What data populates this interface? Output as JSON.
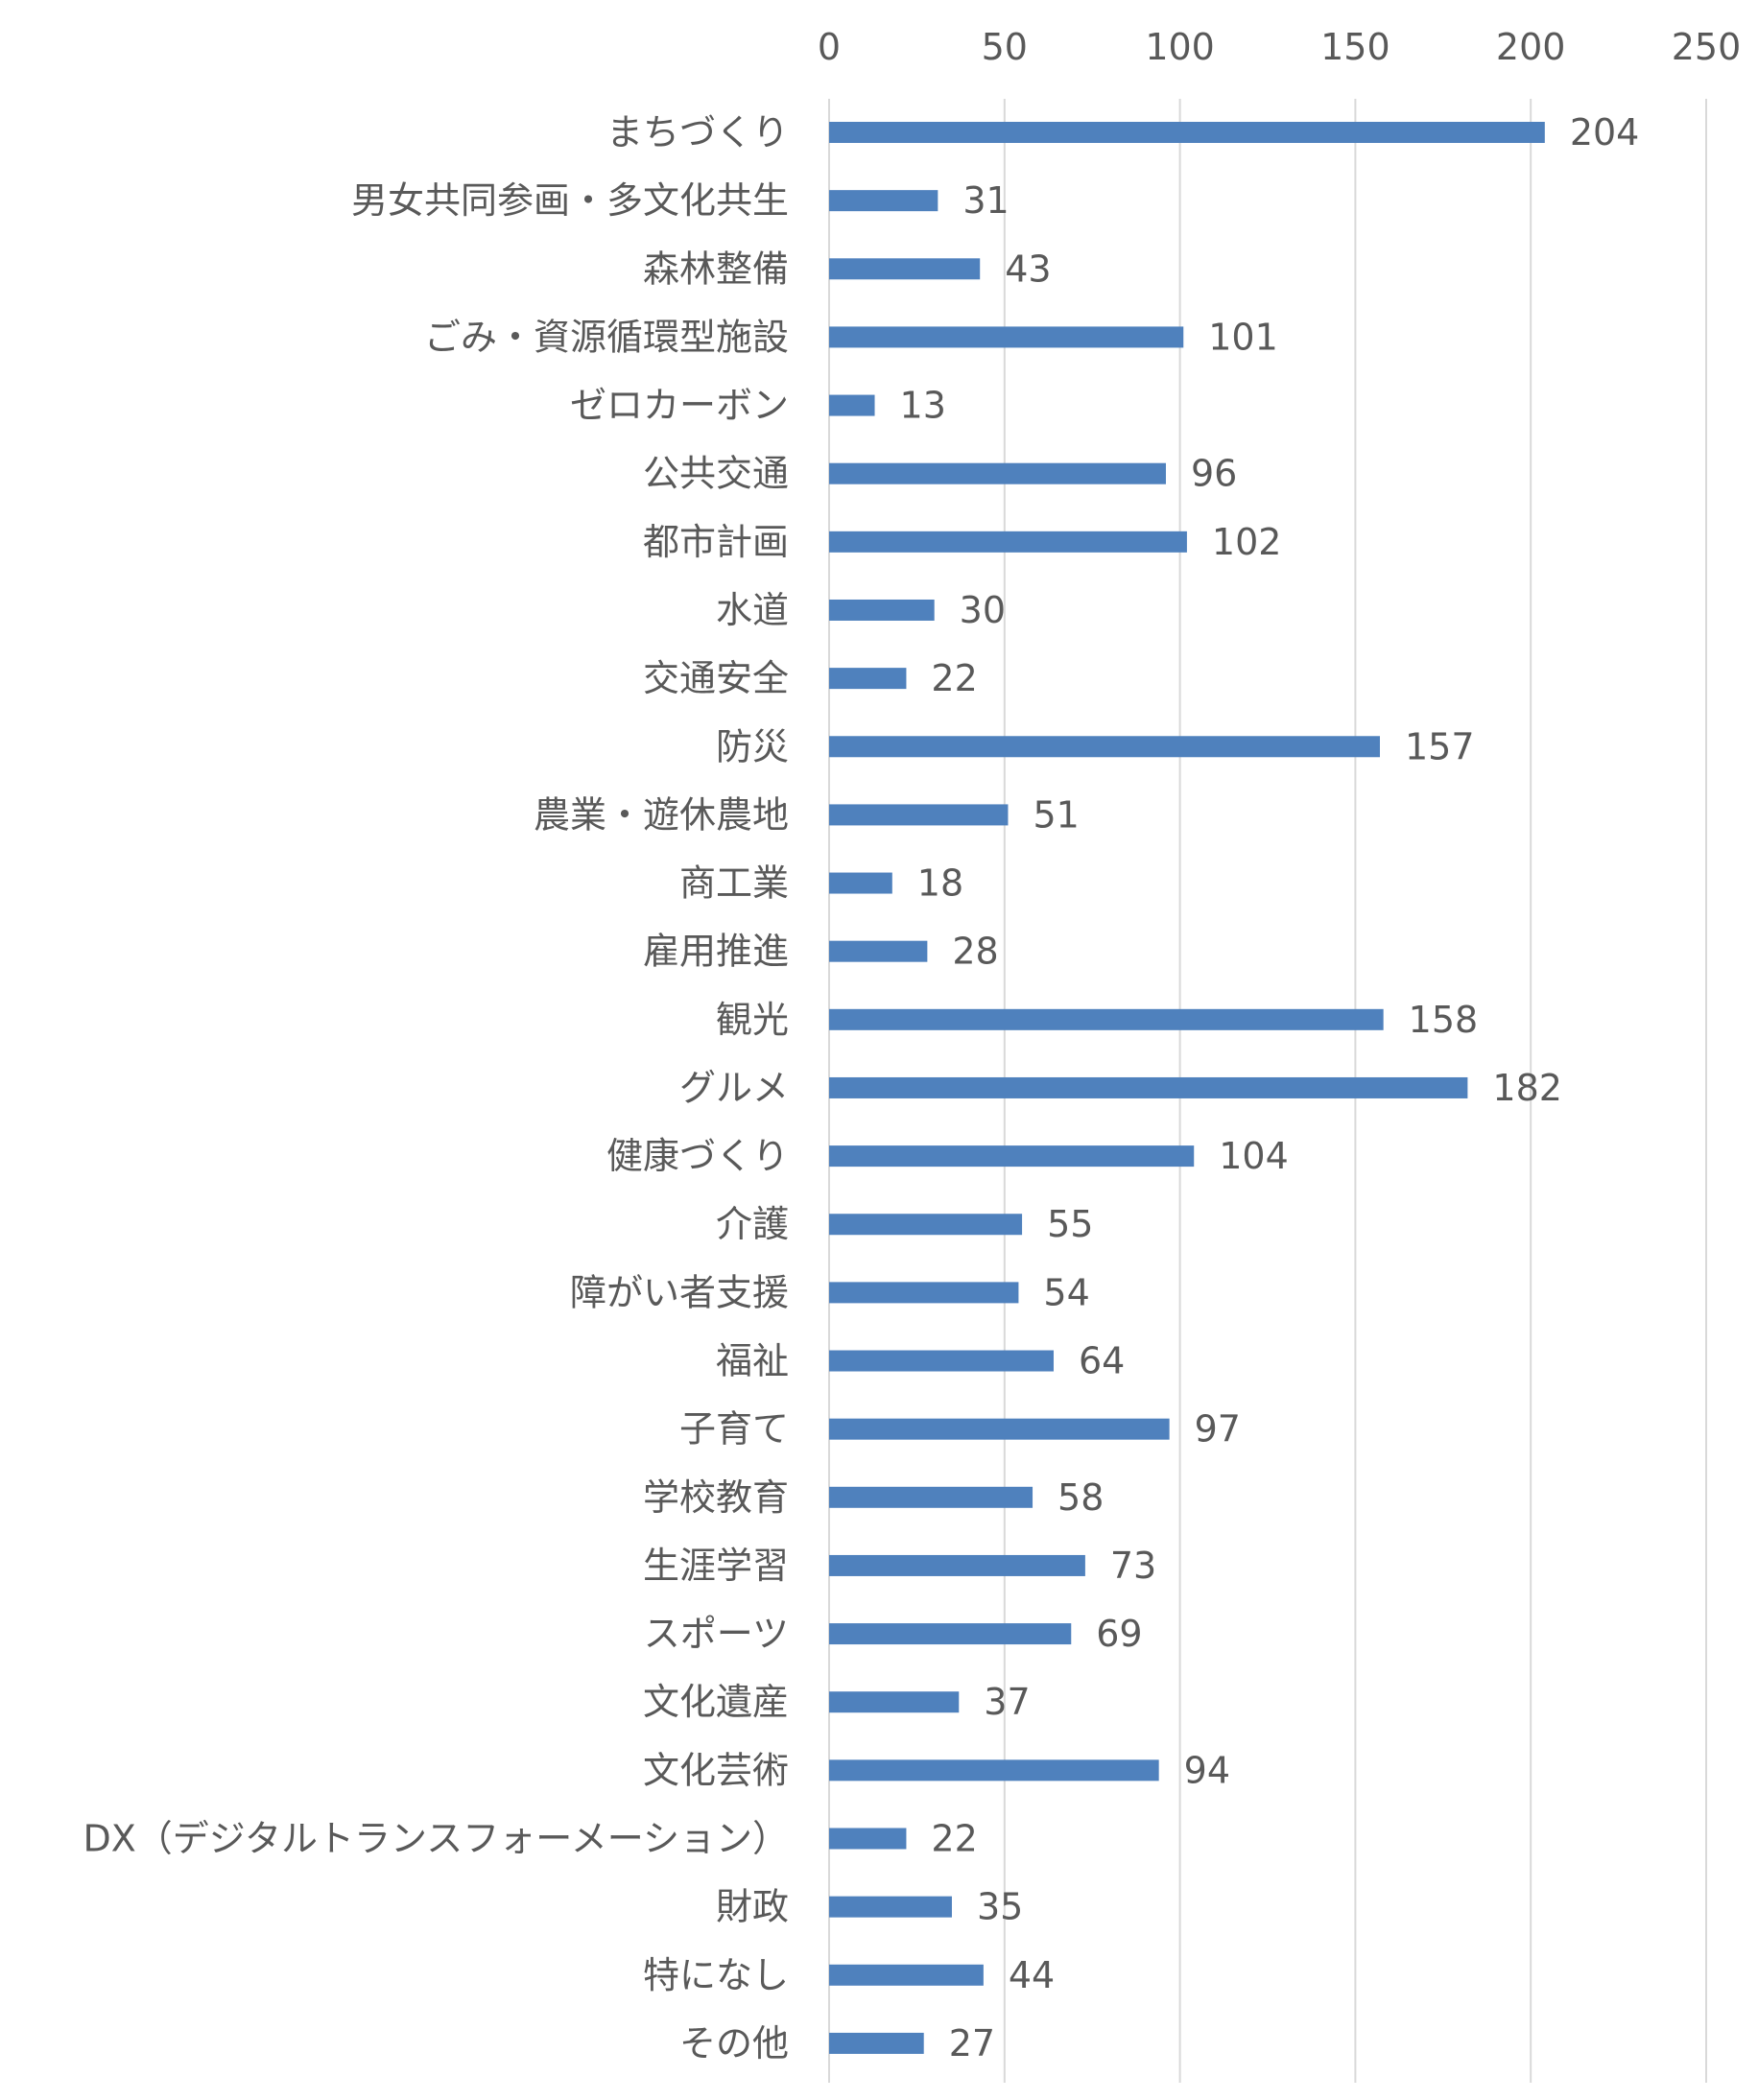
{
  "chart_data": {
    "type": "bar",
    "orientation": "horizontal",
    "title": "",
    "xlabel": "",
    "ylabel": "",
    "xlim": [
      0,
      250
    ],
    "x_ticks": [
      0,
      50,
      100,
      150,
      200,
      250
    ],
    "x_tick_labels": [
      "0",
      "50",
      "100",
      "150",
      "200",
      "250"
    ],
    "x_axis_position": "top",
    "grid": true,
    "legend": "none",
    "data_labels": true,
    "bar_color": "#4f81bd",
    "categories": [
      "まちづくり",
      "男女共同参画・多文化共生",
      "森林整備",
      "ごみ・資源循環型施設",
      "ゼロカーボン",
      "公共交通",
      "都市計画",
      "水道",
      "交通安全",
      "防災",
      "農業・遊休農地",
      "商工業",
      "雇用推進",
      "観光",
      "グルメ",
      "健康づくり",
      "介護",
      "障がい者支援",
      "福祉",
      "子育て",
      "学校教育",
      "生涯学習",
      "スポーツ",
      "文化遺産",
      "文化芸術",
      "DX（デジタルトランスフォーメーション）",
      "財政",
      "特になし",
      "その他"
    ],
    "values": [
      204,
      31,
      43,
      101,
      13,
      96,
      102,
      30,
      22,
      157,
      51,
      18,
      28,
      158,
      182,
      104,
      55,
      54,
      64,
      97,
      58,
      73,
      69,
      37,
      94,
      22,
      35,
      44,
      27
    ]
  }
}
